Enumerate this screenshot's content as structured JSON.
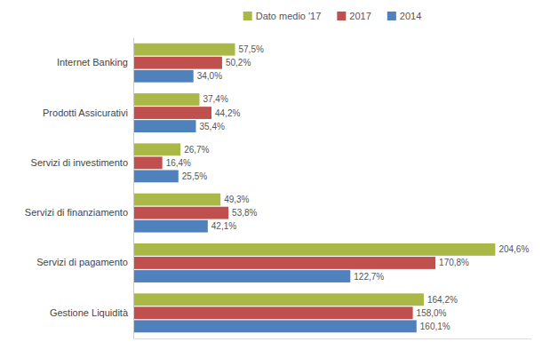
{
  "chart_data": {
    "type": "bar",
    "orientation": "horizontal",
    "categories": [
      "Gestione Liquidità",
      "Servizi di pagamento",
      "Servizi di finanziamento",
      "Servizi di investimento",
      "Prodotti Assicurativi",
      "Internet Banking"
    ],
    "series": [
      {
        "name": "Dato medio '17",
        "color": "#aab848",
        "values": [
          164.2,
          204.6,
          49.3,
          26.7,
          37.4,
          57.5
        ],
        "value_labels": [
          "164,2%",
          "204,6%",
          "49,3%",
          "26,7%",
          "37,4%",
          "57,5%"
        ]
      },
      {
        "name": "2017",
        "color": "#c0504d",
        "values": [
          158.0,
          170.8,
          53.8,
          16.4,
          44.2,
          50.2
        ],
        "value_labels": [
          "158,0%",
          "170,8%",
          "53,8%",
          "16,4%",
          "44,2%",
          "50,2%"
        ]
      },
      {
        "name": "2014",
        "color": "#4f81bd",
        "values": [
          160.1,
          122.7,
          42.1,
          25.5,
          35.4,
          34.0
        ],
        "value_labels": [
          "160,1%",
          "122,7%",
          "42,1%",
          "25,5%",
          "35,4%",
          "34,0%"
        ]
      }
    ],
    "xlim": [
      0,
      225
    ],
    "data_labels": true,
    "tick_labels": "y",
    "legend": "top"
  }
}
